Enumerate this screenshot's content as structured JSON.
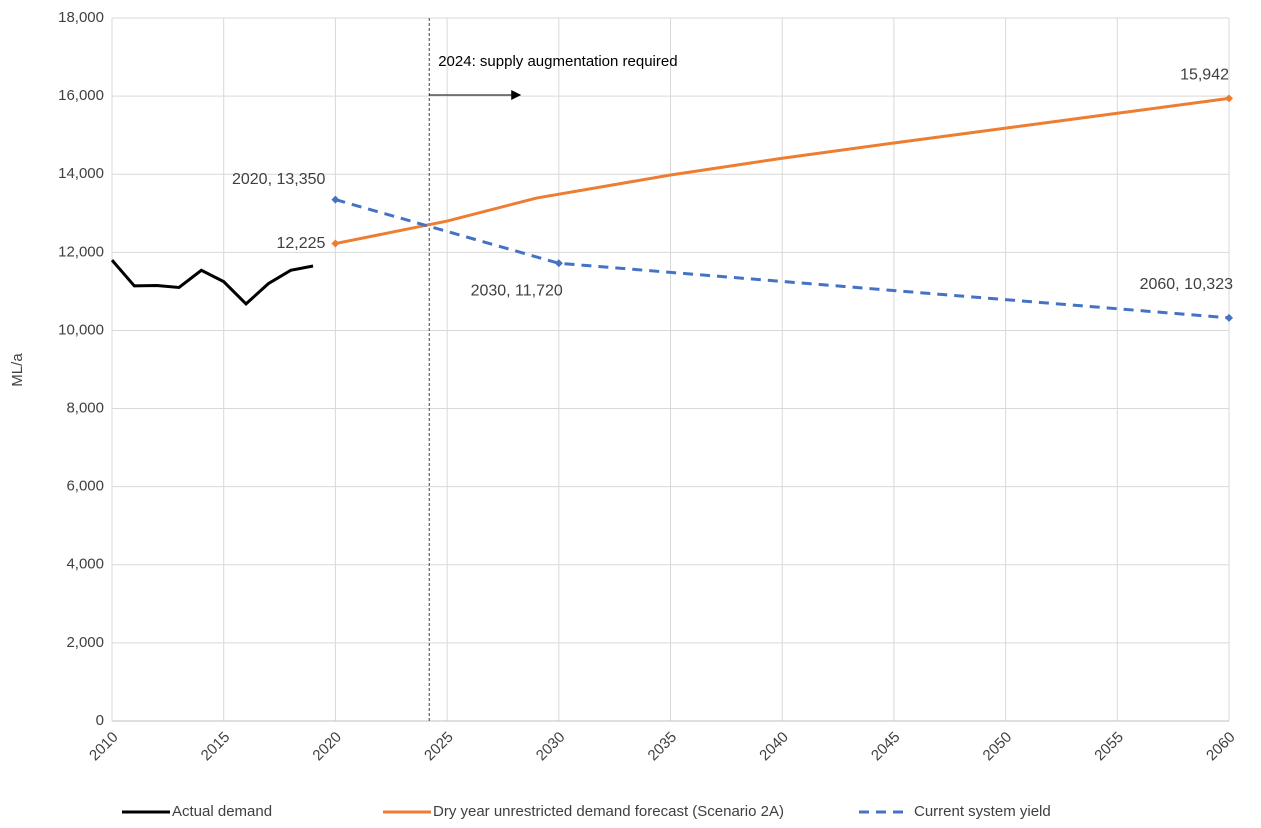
{
  "chart_data": {
    "type": "line",
    "ylabel": "ML/a",
    "xlim": [
      2010,
      2060
    ],
    "xticks": [
      2010,
      2015,
      2020,
      2025,
      2030,
      2035,
      2040,
      2045,
      2050,
      2055,
      2060
    ],
    "ylim": [
      0,
      18000
    ],
    "yticks": [
      0,
      {
        "value": 2000,
        "label": "2,000"
      },
      {
        "value": 4000,
        "label": "4,000"
      },
      {
        "value": 6000,
        "label": "6,000"
      },
      {
        "value": 8000,
        "label": "8,000"
      },
      {
        "value": 10000,
        "label": "10,000"
      },
      {
        "value": 12000,
        "label": "12,000"
      },
      {
        "value": 14000,
        "label": "14,000"
      },
      {
        "value": 16000,
        "label": "16,000"
      },
      {
        "value": 18000,
        "label": "18,000"
      }
    ],
    "grid": true,
    "legend": "bottom",
    "series": [
      {
        "name": "Actual demand",
        "color": "#000000",
        "dashed": false,
        "x": [
          2010,
          2011,
          2012,
          2013,
          2014,
          2015,
          2016,
          2017,
          2018,
          2019
        ],
        "values": [
          11800,
          11140,
          11150,
          11100,
          11540,
          11250,
          10680,
          11200,
          11540,
          11650
        ]
      },
      {
        "name": "Dry year unrestricted demand forecast (Scenario 2A)",
        "color": "#ED7D31",
        "dashed": false,
        "x": [
          2020,
          2025,
          2029,
          2035,
          2040,
          2045,
          2050,
          2055,
          2060
        ],
        "values": [
          12225,
          12800,
          13390,
          13980,
          14410,
          14800,
          15180,
          15560,
          15942
        ],
        "value_labels": [
          "12,225",
          null,
          null,
          null,
          null,
          null,
          null,
          null,
          "15,942"
        ]
      },
      {
        "name": "Current system yield",
        "color": "#4472C4",
        "dashed": true,
        "x": [
          2020,
          2030,
          2060
        ],
        "values": [
          13350,
          11720,
          10323
        ],
        "value_labels": [
          "2020,  13,350",
          "2030,  11,720",
          "2060,  10,323"
        ]
      }
    ],
    "annotations": [
      {
        "text": "2024: supply augmentation required",
        "x": 2024.2
      }
    ]
  }
}
